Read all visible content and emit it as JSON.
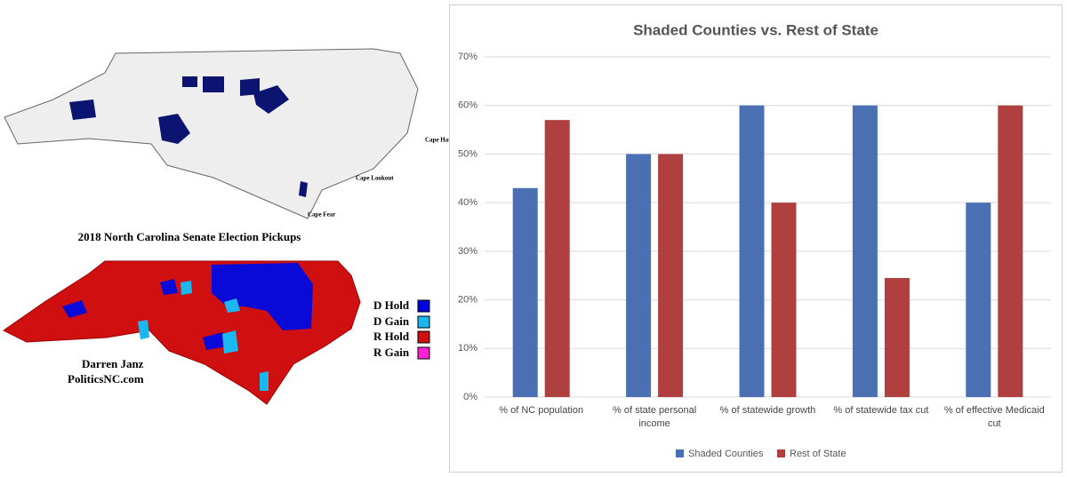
{
  "maps": {
    "capes": [
      "Cape Hatteras",
      "Cape Lookout",
      "Cape Fear"
    ],
    "title": "2018 North Carolina Senate Election Pickups",
    "legend": [
      "D Hold",
      "D Gain",
      "R Hold",
      "R Gain"
    ],
    "author": "Darren Janz",
    "site": "PoliticsNC.com"
  },
  "chart_data": {
    "type": "bar",
    "title": "Shaded Counties vs. Rest of State",
    "categories": [
      "% of NC population",
      "% of state personal income",
      "% of statewide growth",
      "% of statewide tax cut",
      "% of effective Medicaid cut"
    ],
    "series": [
      {
        "name": "Shaded Counties",
        "color": "#4a70b3",
        "values": [
          43,
          50,
          60,
          60,
          40
        ]
      },
      {
        "name": "Rest of State",
        "color": "#b0403f",
        "values": [
          57,
          50,
          40,
          24.5,
          60
        ]
      }
    ],
    "ylim": [
      0,
      70
    ],
    "yticks": [
      {
        "value": 0,
        "label": "0%"
      },
      {
        "value": 10,
        "label": "10%"
      },
      {
        "value": 20,
        "label": "20%"
      },
      {
        "value": 30,
        "label": "30%"
      },
      {
        "value": 40,
        "label": "40%"
      },
      {
        "value": 50,
        "label": "50%"
      },
      {
        "value": 60,
        "label": "60%"
      },
      {
        "value": 70,
        "label": "70%"
      }
    ],
    "grid": true,
    "legend": "bottom"
  }
}
